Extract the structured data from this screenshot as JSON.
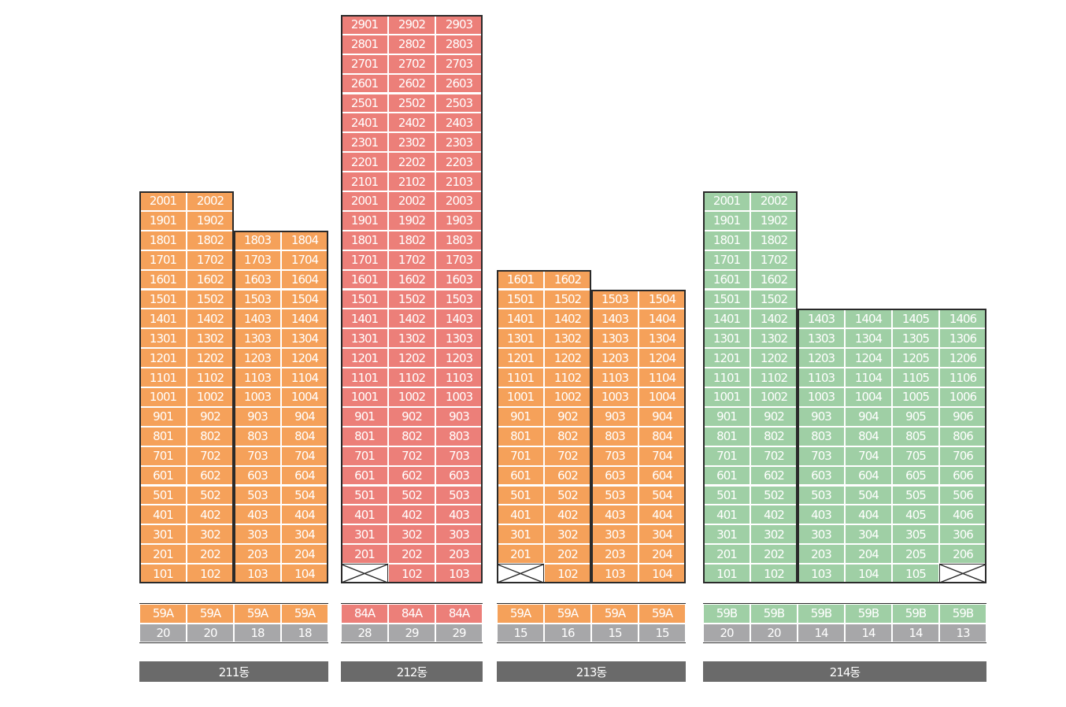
{
  "buildings": [
    {
      "name": "211동",
      "color": "#f5a15a",
      "columns": [
        {
          "type": "59A",
          "count": "20",
          "top_floor": 20
        },
        {
          "type": "59A",
          "count": "20",
          "top_floor": 20
        },
        {
          "type": "59A",
          "count": "18",
          "top_floor": 18
        },
        {
          "type": "59A",
          "count": "18",
          "top_floor": 18
        }
      ],
      "blanks": []
    },
    {
      "name": "212동",
      "color": "#ec7f79",
      "columns": [
        {
          "type": "84A",
          "count": "28",
          "top_floor": 29
        },
        {
          "type": "84A",
          "count": "29",
          "top_floor": 29
        },
        {
          "type": "84A",
          "count": "29",
          "top_floor": 29
        }
      ],
      "blanks": [
        "101"
      ]
    },
    {
      "name": "213동",
      "color": "#f5a15a",
      "columns": [
        {
          "type": "59A",
          "count": "15",
          "top_floor": 16
        },
        {
          "type": "59A",
          "count": "16",
          "top_floor": 16
        },
        {
          "type": "59A",
          "count": "15",
          "top_floor": 15
        },
        {
          "type": "59A",
          "count": "15",
          "top_floor": 15
        }
      ],
      "blanks": [
        "101"
      ]
    },
    {
      "name": "214동",
      "color": "#9fcfa5",
      "columns": [
        {
          "type": "59B",
          "count": "20",
          "top_floor": 20
        },
        {
          "type": "59B",
          "count": "20",
          "top_floor": 20
        },
        {
          "type": "59B",
          "count": "14",
          "top_floor": 14
        },
        {
          "type": "59B",
          "count": "14",
          "top_floor": 14
        },
        {
          "type": "59B",
          "count": "14",
          "top_floor": 14
        },
        {
          "type": "59B",
          "count": "13",
          "top_floor": 14
        }
      ],
      "blanks": [
        "106"
      ]
    }
  ]
}
